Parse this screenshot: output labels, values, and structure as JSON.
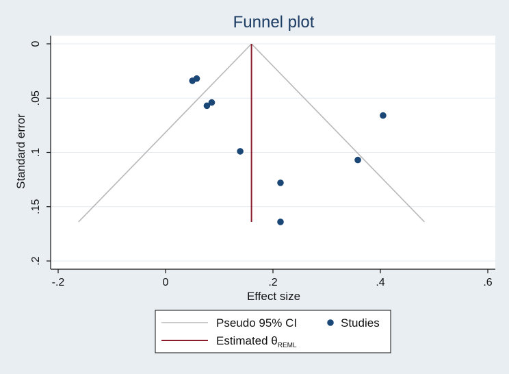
{
  "colors": {
    "background": "#e9eef3",
    "plot_region": "#ffffff",
    "gridline": "#e4ebf1",
    "axis": "#111111",
    "title": "#1c3c64",
    "ci_line": "#b8b8b8",
    "estimate_line": "#8b1a2b",
    "study_point": "#1a4776"
  },
  "chart_data": {
    "type": "scatter",
    "title": "Funnel plot",
    "xlabel": "Effect size",
    "ylabel": "Standard error",
    "xlim": [
      -0.2,
      0.6
    ],
    "ylim": [
      0.2,
      0
    ],
    "y_reversed": true,
    "xticks": [
      {
        "value": -0.2,
        "label": "-.2"
      },
      {
        "value": 0,
        "label": "0"
      },
      {
        "value": 0.2,
        "label": ".2"
      },
      {
        "value": 0.4,
        "label": ".4"
      },
      {
        "value": 0.6,
        "label": ".6"
      }
    ],
    "yticks": [
      {
        "value": 0,
        "label": "0"
      },
      {
        "value": 0.05,
        "label": ".05"
      },
      {
        "value": 0.1,
        "label": ".1"
      },
      {
        "value": 0.15,
        "label": ".15"
      },
      {
        "value": 0.2,
        "label": ".2"
      }
    ],
    "grid": "horizontal",
    "estimate": {
      "theta": 0.16,
      "se_max": 0.164
    },
    "pseudo_ci": {
      "level": "95%",
      "apex": [
        0.16,
        0
      ],
      "left_end": [
        -0.162,
        0.164
      ],
      "right_end": [
        0.482,
        0.164
      ]
    },
    "series": [
      {
        "name": "Studies",
        "points": [
          {
            "x": 0.05,
            "y": 0.034
          },
          {
            "x": 0.058,
            "y": 0.032
          },
          {
            "x": 0.077,
            "y": 0.057
          },
          {
            "x": 0.086,
            "y": 0.054
          },
          {
            "x": 0.139,
            "y": 0.099
          },
          {
            "x": 0.214,
            "y": 0.128
          },
          {
            "x": 0.214,
            "y": 0.164
          },
          {
            "x": 0.358,
            "y": 0.107
          },
          {
            "x": 0.405,
            "y": 0.066
          }
        ]
      }
    ],
    "legend": {
      "position": "bottom",
      "items": [
        {
          "label": "Pseudo 95% CI",
          "type": "line",
          "color": "#b8b8b8"
        },
        {
          "label": "Studies",
          "type": "marker",
          "color": "#1a4776"
        },
        {
          "label": "Estimated θ",
          "subscript": "REML",
          "type": "line",
          "color": "#8b1a2b"
        }
      ]
    }
  }
}
